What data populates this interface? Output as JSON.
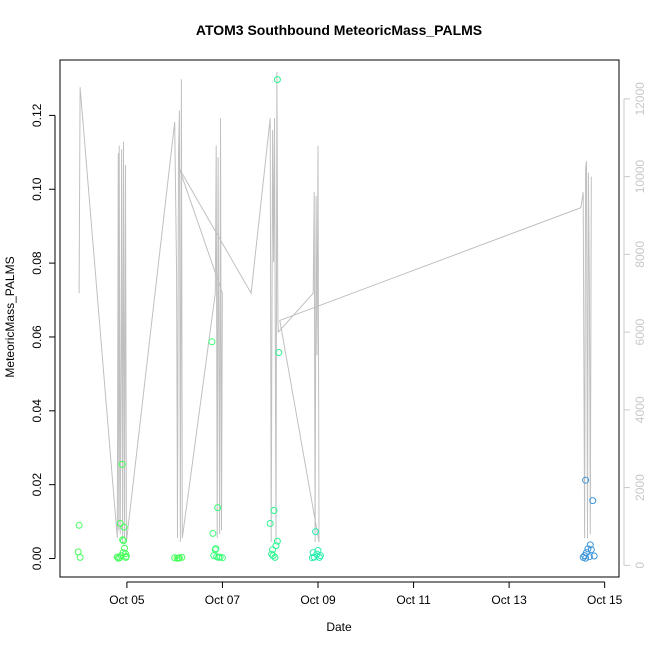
{
  "chart_data": {
    "type": "scatter",
    "title": "ATOM3 Southbound MeteoricMass_PALMS",
    "xlabel": "Date",
    "ylabel": "MeteoricMass_PALMS",
    "x_ticks": [
      "Oct 05",
      "Oct 07",
      "Oct 09",
      "Oct 11",
      "Oct 13",
      "Oct 15"
    ],
    "y_ticks": [
      "0.00",
      "0.02",
      "0.04",
      "0.06",
      "0.08",
      "0.10",
      "0.12"
    ],
    "y2_ticks": [
      "0",
      "2000",
      "4000",
      "6000",
      "8000",
      "10000",
      "12000"
    ],
    "xlim_days": [
      3.6,
      15.3
    ],
    "ylim": [
      -0.005,
      0.135
    ],
    "y2lim": [
      -300,
      13000
    ],
    "colors": {
      "alt_line": "#c0c0c0",
      "axis_right": "#c8c8c8"
    },
    "series": [
      {
        "color": "#46ff5a",
        "points": [
          [
            4.0,
            0.009
          ],
          [
            3.98,
            0.0018
          ],
          [
            4.02,
            0.0003
          ],
          [
            4.8,
            0.0004
          ],
          [
            4.82,
            0.0001
          ],
          [
            4.86,
            0.0095
          ],
          [
            4.88,
            0.0008
          ],
          [
            4.9,
            0.0255
          ],
          [
            4.91,
            0.0051
          ],
          [
            4.93,
            0.0048
          ],
          [
            4.94,
            0.0085
          ],
          [
            4.95,
            0.0028
          ],
          [
            4.97,
            0.0013
          ],
          [
            4.98,
            0.0003
          ],
          [
            4.99,
            0.0006
          ],
          [
            4.85,
            0.0002
          ],
          [
            4.92,
            0.0016
          ],
          [
            6.0,
            0.0002
          ],
          [
            6.05,
            0.0001
          ],
          [
            6.1,
            0.0002
          ],
          [
            6.15,
            0.0003
          ],
          [
            6.08,
            0.0001
          ]
        ]
      },
      {
        "color": "#3cff78",
        "points": [
          [
            6.78,
            0.0587
          ],
          [
            6.8,
            0.0068
          ],
          [
            6.85,
            0.0024
          ],
          [
            6.9,
            0.0138
          ],
          [
            6.82,
            0.0008
          ],
          [
            6.88,
            0.0005
          ],
          [
            6.92,
            0.0003
          ],
          [
            6.95,
            0.0004
          ],
          [
            7.0,
            0.0002
          ],
          [
            6.86,
            0.0027
          ]
        ]
      },
      {
        "color": "#2cf590",
        "points": [
          [
            8.0,
            0.0095
          ],
          [
            8.05,
            0.0024
          ],
          [
            8.08,
            0.013
          ],
          [
            8.12,
            0.0035
          ],
          [
            8.15,
            0.0047
          ],
          [
            8.1,
            0.0003
          ],
          [
            8.06,
            0.0008
          ],
          [
            8.18,
            0.0558
          ],
          [
            8.15,
            0.1297
          ],
          [
            8.03,
            0.0012
          ]
        ]
      },
      {
        "color": "#2aeeb0",
        "points": [
          [
            8.9,
            0.0016
          ],
          [
            8.95,
            0.0073
          ],
          [
            9.0,
            0.0022
          ],
          [
            9.05,
            0.0008
          ],
          [
            8.92,
            0.0004
          ],
          [
            8.98,
            0.0012
          ],
          [
            9.03,
            0.0003
          ],
          [
            8.88,
            0.0002
          ]
        ]
      },
      {
        "color": "#3c96dc",
        "points": [
          [
            14.6,
            0.0212
          ],
          [
            14.65,
            0.0026
          ],
          [
            14.7,
            0.0037
          ],
          [
            14.75,
            0.0157
          ],
          [
            14.55,
            0.0003
          ],
          [
            14.58,
            0.0008
          ],
          [
            14.62,
            0.0016
          ],
          [
            14.68,
            0.0005
          ],
          [
            14.72,
            0.0024
          ],
          [
            14.78,
            0.0007
          ],
          [
            14.6,
            0.0001
          ]
        ]
      }
    ],
    "altitude_line": [
      [
        4.0,
        7000
      ],
      [
        4.02,
        12300
      ],
      [
        4.8,
        700
      ],
      [
        4.82,
        10600
      ],
      [
        4.83,
        900
      ],
      [
        4.84,
        10800
      ],
      [
        4.86,
        800
      ],
      [
        4.88,
        6000
      ],
      [
        4.89,
        10700
      ],
      [
        4.91,
        600
      ],
      [
        4.93,
        10900
      ],
      [
        4.95,
        700
      ],
      [
        4.97,
        10300
      ],
      [
        4.99,
        600
      ],
      [
        6.0,
        11400
      ],
      [
        6.04,
        7500
      ],
      [
        6.06,
        700
      ],
      [
        6.08,
        10600
      ],
      [
        6.1,
        11700
      ],
      [
        6.12,
        600
      ],
      [
        6.14,
        12500
      ],
      [
        6.16,
        700
      ],
      [
        6.85,
        7000
      ],
      [
        6.87,
        10800
      ],
      [
        6.89,
        700
      ],
      [
        6.91,
        10500
      ],
      [
        6.94,
        800
      ],
      [
        6.96,
        11500
      ],
      [
        6.98,
        900
      ],
      [
        7.0,
        7000
      ],
      [
        6.1,
        10200
      ],
      [
        7.6,
        7000
      ],
      [
        8.0,
        11500
      ],
      [
        8.02,
        600
      ],
      [
        8.05,
        11200
      ],
      [
        8.07,
        7800
      ],
      [
        8.09,
        11500
      ],
      [
        8.12,
        600
      ],
      [
        8.14,
        12700
      ],
      [
        8.16,
        6300
      ],
      [
        8.17,
        6000
      ],
      [
        8.9,
        7000
      ],
      [
        8.92,
        9600
      ],
      [
        8.94,
        600
      ],
      [
        8.96,
        9500
      ],
      [
        8.98,
        5400
      ],
      [
        9.0,
        10800
      ],
      [
        9.02,
        600
      ],
      [
        8.2,
        6300
      ],
      [
        14.5,
        9200
      ],
      [
        14.55,
        9600
      ],
      [
        14.58,
        700
      ],
      [
        14.6,
        10200
      ],
      [
        14.62,
        10400
      ],
      [
        14.64,
        700
      ],
      [
        14.66,
        10100
      ],
      [
        14.68,
        7200
      ],
      [
        14.7,
        800
      ],
      [
        14.72,
        10000
      ]
    ]
  }
}
